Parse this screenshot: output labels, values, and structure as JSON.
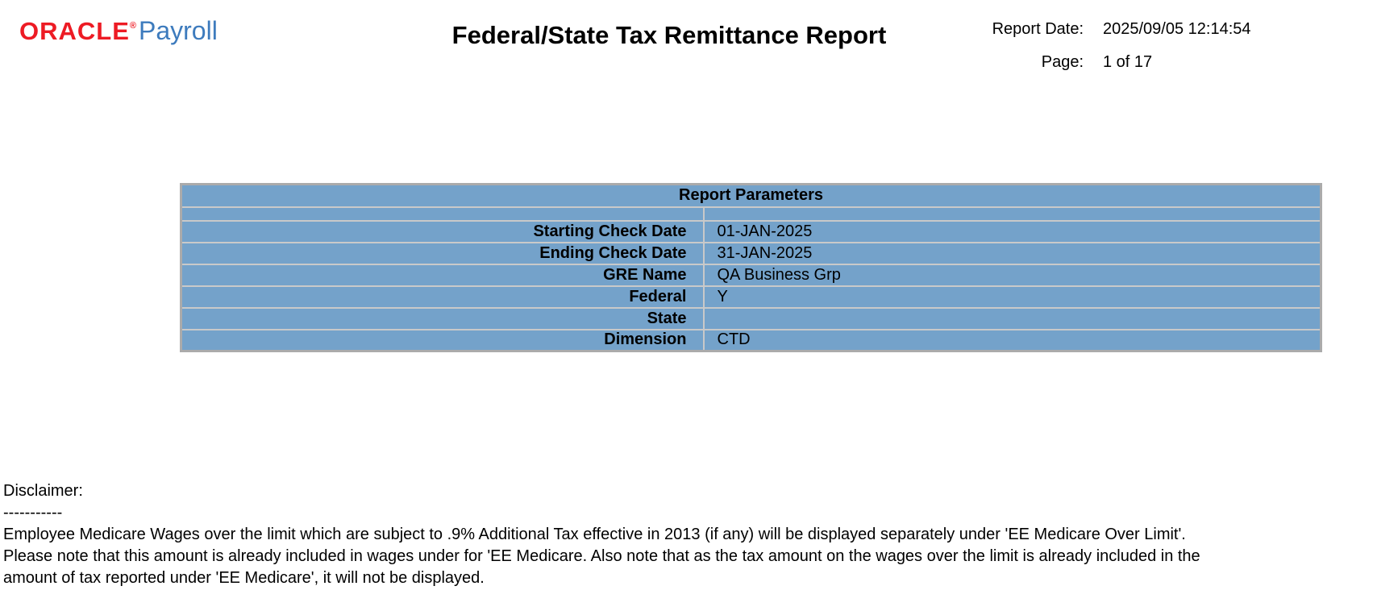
{
  "logo": {
    "brand": "ORACLE",
    "registered": "®",
    "product": "Payroll"
  },
  "header": {
    "title": "Federal/State Tax Remittance Report",
    "report_date_label": "Report Date:",
    "report_date_value": "2025/09/05 12:14:54",
    "page_label": "Page:",
    "page_value": "1 of 17"
  },
  "parameters_table": {
    "title": "Report Parameters",
    "rows": [
      {
        "label": "Starting Check Date",
        "value": "01-JAN-2025"
      },
      {
        "label": "Ending Check Date",
        "value": "31-JAN-2025"
      },
      {
        "label": "GRE Name",
        "value": "QA Business Grp"
      },
      {
        "label": "Federal",
        "value": "Y"
      },
      {
        "label": "State",
        "value": ""
      },
      {
        "label": "Dimension",
        "value": "CTD"
      }
    ]
  },
  "disclaimer": {
    "heading": "Disclaimer:",
    "divider": "-----------",
    "body": "Employee Medicare Wages over the limit which are subject to .9% Additional Tax effective in 2013 (if any) will be displayed separately under 'EE Medicare Over Limit'. Please note that this amount is already included in wages under for 'EE Medicare. Also note that as the tax amount on the wages over the limit is already included in the amount of tax reported under 'EE Medicare', it will not be displayed."
  },
  "colors": {
    "oracle_red": "#ED1B24",
    "payroll_blue": "#3D7BBD",
    "table_blue": "#74A2CA",
    "border_gray": "#C9C9C9"
  }
}
